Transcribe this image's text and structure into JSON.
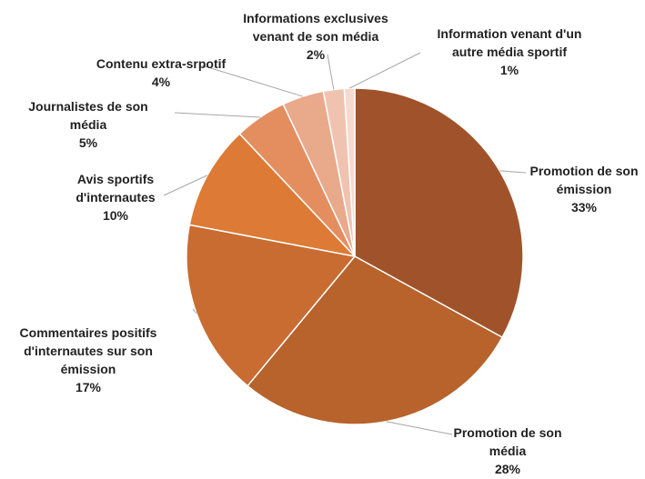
{
  "chart_data": {
    "type": "pie",
    "categories": [
      "Promotion de son émission",
      "Promotion de son média",
      "Commentaires positifs d'internautes sur son émission",
      "Avis sportifs d'internautes",
      "Journalistes de son média",
      "Contenu extra-srpotif",
      "Informations exclusives venant de son média",
      "Information venant d'un autre média sportif"
    ],
    "values": [
      33,
      28,
      17,
      10,
      5,
      4,
      2,
      1
    ],
    "value_labels": [
      "33%",
      "28%",
      "17%",
      "10%",
      "5%",
      "4%",
      "2%",
      "1%"
    ],
    "colors": [
      "#a0532a",
      "#b8622c",
      "#c96c31",
      "#dc7a36",
      "#e48e60",
      "#e9a98b",
      "#f0c3b1",
      "#f6dacf"
    ]
  }
}
